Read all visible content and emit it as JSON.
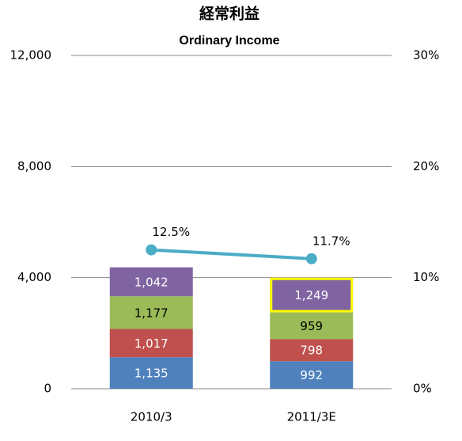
{
  "chart_data": {
    "type": "stacked_bar_line",
    "title": "経常利益",
    "subtitle": "Ordinary Income",
    "categories": [
      "2010/3",
      "2011/3E"
    ],
    "series": [
      {
        "color": "#4f81bd",
        "label_color": "#ffffff",
        "values": [
          1135,
          992
        ],
        "value_labels": [
          "1,135",
          "992"
        ]
      },
      {
        "color": "#c0504d",
        "label_color": "#ffffff",
        "values": [
          1017,
          798
        ],
        "value_labels": [
          "1,017",
          "798"
        ]
      },
      {
        "color": "#9bbb59",
        "label_color": "#000000",
        "values": [
          1177,
          959
        ],
        "value_labels": [
          "1,177",
          "959"
        ]
      },
      {
        "color": "#8064a2",
        "label_color": "#ffffff",
        "values": [
          1042,
          1249
        ],
        "value_labels": [
          "1,042",
          "1,249"
        ]
      },
      {
        "type": "line",
        "axis": "y2",
        "color": "#4bacc6",
        "values": [
          12.5,
          11.7
        ],
        "value_labels": [
          "12.5%",
          "11.7%"
        ]
      }
    ],
    "highlight": {
      "series": 3,
      "index": 1,
      "color": "#ffff00"
    },
    "ylim": [
      0,
      12000
    ],
    "yticks": [
      0,
      {
        "value": 4000,
        "label": "4,000"
      },
      {
        "value": 8000,
        "label": "8,000"
      },
      {
        "value": 12000,
        "label": "12,000"
      }
    ],
    "y2lim": [
      0,
      30
    ],
    "y2ticks": [
      {
        "value": 0,
        "label": "0%"
      },
      {
        "value": 10,
        "label": "10%"
      },
      {
        "value": 20,
        "label": "20%"
      },
      {
        "value": 30,
        "label": "30%"
      }
    ],
    "grid": true
  }
}
